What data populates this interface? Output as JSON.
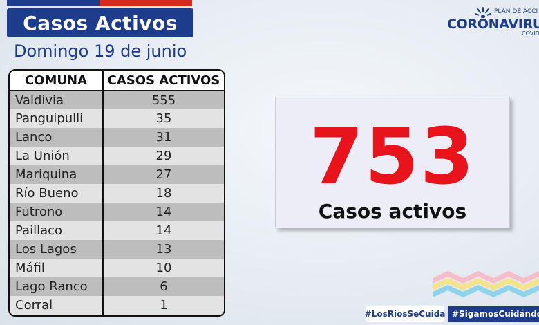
{
  "header": {
    "title": "Casos Activos",
    "date": "Domingo 19 de junio"
  },
  "logo": {
    "top_text": "PLAN DE ACCI",
    "main_text": "CORONAVIRU",
    "sub_text": "COVID"
  },
  "table": {
    "columns": [
      "COMUNA",
      "CASOS ACTIVOS"
    ],
    "rows": [
      {
        "comuna": "Valdivia",
        "casos": "555"
      },
      {
        "comuna": "Panguipulli",
        "casos": "35"
      },
      {
        "comuna": "Lanco",
        "casos": "31"
      },
      {
        "comuna": "La Unión",
        "casos": "29"
      },
      {
        "comuna": "Mariquina",
        "casos": "27"
      },
      {
        "comuna": "Río Bueno",
        "casos": "18"
      },
      {
        "comuna": "Futrono",
        "casos": "14"
      },
      {
        "comuna": "Paillaco",
        "casos": "14"
      },
      {
        "comuna": "Los Lagos",
        "casos": "13"
      },
      {
        "comuna": "Máfil",
        "casos": "10"
      },
      {
        "comuna": "Lago Ranco",
        "casos": "6"
      },
      {
        "comuna": "Corral",
        "casos": "1"
      }
    ]
  },
  "total": {
    "value": "753",
    "label": "Casos activos"
  },
  "hashtags": {
    "first": "#LosRíosSeCuida",
    "second": "#SigamosCuidándonos"
  },
  "colors": {
    "brand_blue": "#1d3c8c",
    "brand_red": "#d52b1e",
    "total_red": "#e8131b"
  }
}
